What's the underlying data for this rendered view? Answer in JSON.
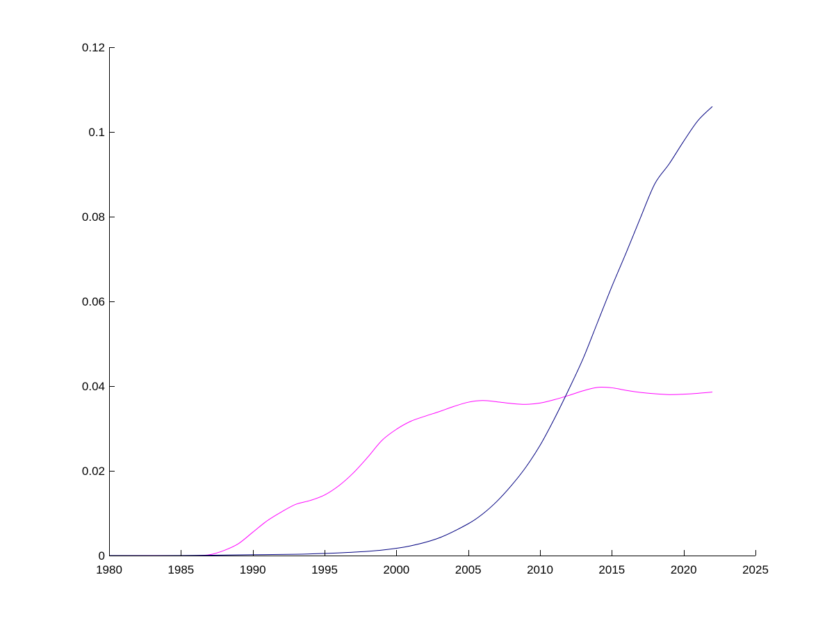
{
  "chart_data": {
    "type": "line",
    "title": "",
    "xlabel": "",
    "ylabel": "",
    "xlim": [
      1980,
      2025
    ],
    "ylim": [
      0,
      0.12
    ],
    "grid": false,
    "legend": "none",
    "x_ticks": [
      1980,
      1985,
      1990,
      1995,
      2000,
      2005,
      2010,
      2015,
      2020,
      2025
    ],
    "x_tick_labels": [
      "1980",
      "1985",
      "1990",
      "1995",
      "2000",
      "2005",
      "2010",
      "2015",
      "2020",
      "2025"
    ],
    "y_ticks": [
      0,
      0.02,
      0.04,
      0.06,
      0.08,
      0.1,
      0.12
    ],
    "y_tick_labels": [
      "0",
      "0.02",
      "0.04",
      "0.06",
      "0.08",
      "0.1",
      "0.12"
    ],
    "series": [
      {
        "color": "#ff00ff",
        "x": [
          1980,
          1982,
          1984,
          1986,
          1987,
          1988,
          1989,
          1990,
          1991,
          1992,
          1993,
          1994,
          1995,
          1996,
          1997,
          1998,
          1999,
          2000,
          2001,
          2002,
          2003,
          2004,
          2005,
          2006,
          2007,
          2008,
          2009,
          2010,
          2011,
          2012,
          2013,
          2014,
          2015,
          2016,
          2017,
          2018,
          2019,
          2020,
          2021,
          2022
        ],
        "y": [
          0,
          0,
          0,
          0,
          0.0002,
          0.0012,
          0.0028,
          0.0055,
          0.0082,
          0.0103,
          0.0121,
          0.013,
          0.0143,
          0.0165,
          0.0195,
          0.0232,
          0.0272,
          0.0298,
          0.0317,
          0.0329,
          0.034,
          0.0352,
          0.0362,
          0.0366,
          0.0363,
          0.0359,
          0.0357,
          0.036,
          0.0368,
          0.0378,
          0.0389,
          0.0397,
          0.0396,
          0.039,
          0.0385,
          0.0382,
          0.038,
          0.0381,
          0.0383,
          0.0386
        ]
      },
      {
        "color": "#000080",
        "x": [
          1980,
          1985,
          1990,
          1993,
          1995,
          1997,
          1999,
          2001,
          2003,
          2005,
          2006,
          2007,
          2008,
          2009,
          2010,
          2011,
          2012,
          2013,
          2014,
          2015,
          2016,
          2017,
          2018,
          2019,
          2020,
          2021,
          2022
        ],
        "y": [
          0,
          0,
          0.0002,
          0.0003,
          0.0005,
          0.0008,
          0.0013,
          0.0023,
          0.0042,
          0.0075,
          0.0098,
          0.0128,
          0.0165,
          0.0208,
          0.026,
          0.0323,
          0.0392,
          0.0465,
          0.055,
          0.0635,
          0.0715,
          0.0798,
          0.0878,
          0.0925,
          0.0978,
          0.1027,
          0.106
        ]
      }
    ]
  }
}
